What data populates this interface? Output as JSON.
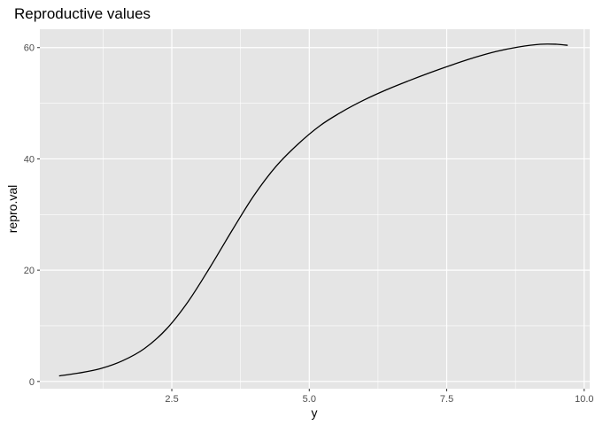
{
  "chart_data": {
    "type": "line",
    "title": "Reproductive values",
    "xlabel": "y",
    "ylabel": "repro.val",
    "xlim": [
      0.1,
      10.1
    ],
    "ylim": [
      -1.3,
      63.3
    ],
    "x_ticks": [
      2.5,
      5.0,
      7.5,
      10.0
    ],
    "x_tick_labels": [
      "2.5",
      "5.0",
      "7.5",
      "10.0"
    ],
    "y_ticks": [
      0,
      20,
      40,
      60
    ],
    "y_tick_labels": [
      "0",
      "20",
      "40",
      "60"
    ],
    "grid": true,
    "colors": {
      "panel_background": "#e5e5e5",
      "grid_line": "#ffffff",
      "series_line": "#000000",
      "tick_mark": "#333333"
    },
    "series": [
      {
        "x": [
          0.45,
          0.8,
          1.2,
          1.6,
          2.0,
          2.4,
          2.8,
          3.2,
          3.6,
          4.0,
          4.4,
          4.8,
          5.2,
          5.6,
          6.0,
          6.4,
          6.8,
          7.2,
          7.6,
          8.0,
          8.4,
          8.8,
          9.2,
          9.5,
          9.7
        ],
        "y": [
          1.0,
          1.5,
          2.3,
          3.7,
          5.9,
          9.4,
          14.4,
          20.6,
          27.2,
          33.5,
          38.7,
          42.7,
          46.0,
          48.5,
          50.6,
          52.4,
          54.0,
          55.5,
          56.9,
          58.2,
          59.3,
          60.1,
          60.6,
          60.6,
          60.4
        ]
      }
    ]
  }
}
